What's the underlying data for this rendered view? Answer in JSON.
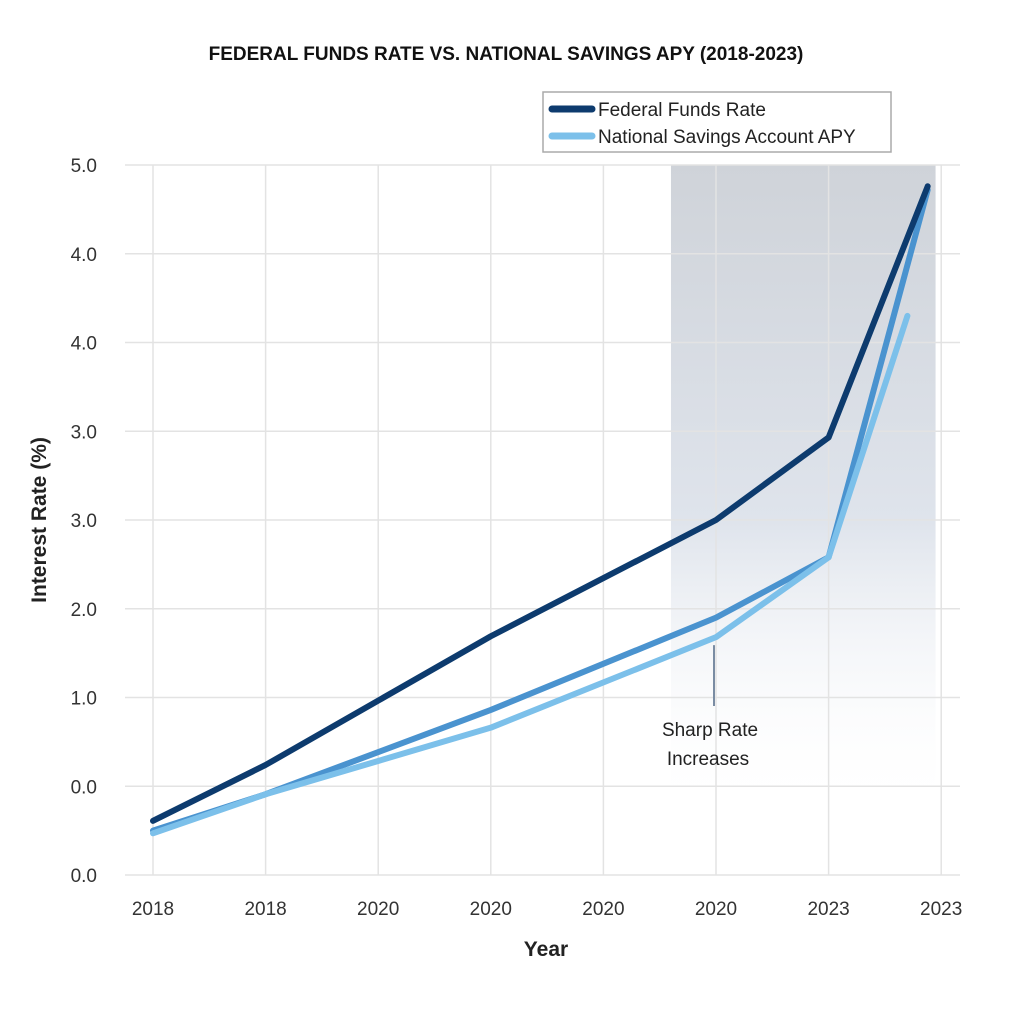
{
  "chart_data": {
    "type": "line",
    "title": "FEDERAL FUNDS RATE VS. NATIONAL SAVINGS APY (2018-2023)",
    "xlabel": "Year",
    "ylabel": "Interest Rate (%)",
    "x_tick_labels": [
      "2018",
      "2018",
      "2020",
      "2020",
      "2020",
      "2020",
      "2023",
      "2023"
    ],
    "y_tick_labels": [
      "0.0",
      "0.0",
      "1.0",
      "2.0",
      "3.0",
      "3.0",
      "4.0",
      "4.0",
      "5.0"
    ],
    "xlim": [
      0,
      7
    ],
    "ylim": [
      0,
      8
    ],
    "grid": true,
    "legend_position": "top-right",
    "legend": [
      "Federal Funds Rate",
      "National Savings Account APY"
    ],
    "highlight_region": {
      "x_from": 4.6,
      "x_to": 6.95
    },
    "annotation": {
      "text_line1": "Sharp Rate",
      "text_line2": "Increases",
      "x": 5,
      "y": 2.68
    },
    "series": [
      {
        "name": "Federal Funds Rate",
        "color": "#0d3b6e",
        "x": [
          0,
          1,
          3,
          5,
          6,
          6.88
        ],
        "y": [
          0.61,
          1.24,
          2.69,
          4.0,
          4.93,
          7.76
        ]
      },
      {
        "color": "#4a93cf",
        "x": [
          0,
          1,
          3,
          5,
          6,
          6.88
        ],
        "y": [
          0.5,
          0.91,
          1.86,
          2.9,
          3.58,
          7.72
        ]
      },
      {
        "name": "National Savings Account APY",
        "color": "#7cc0ea",
        "x": [
          0,
          1,
          3,
          5,
          6,
          6.7
        ],
        "y": [
          0.47,
          0.91,
          1.66,
          2.68,
          3.58,
          6.3
        ]
      }
    ]
  }
}
